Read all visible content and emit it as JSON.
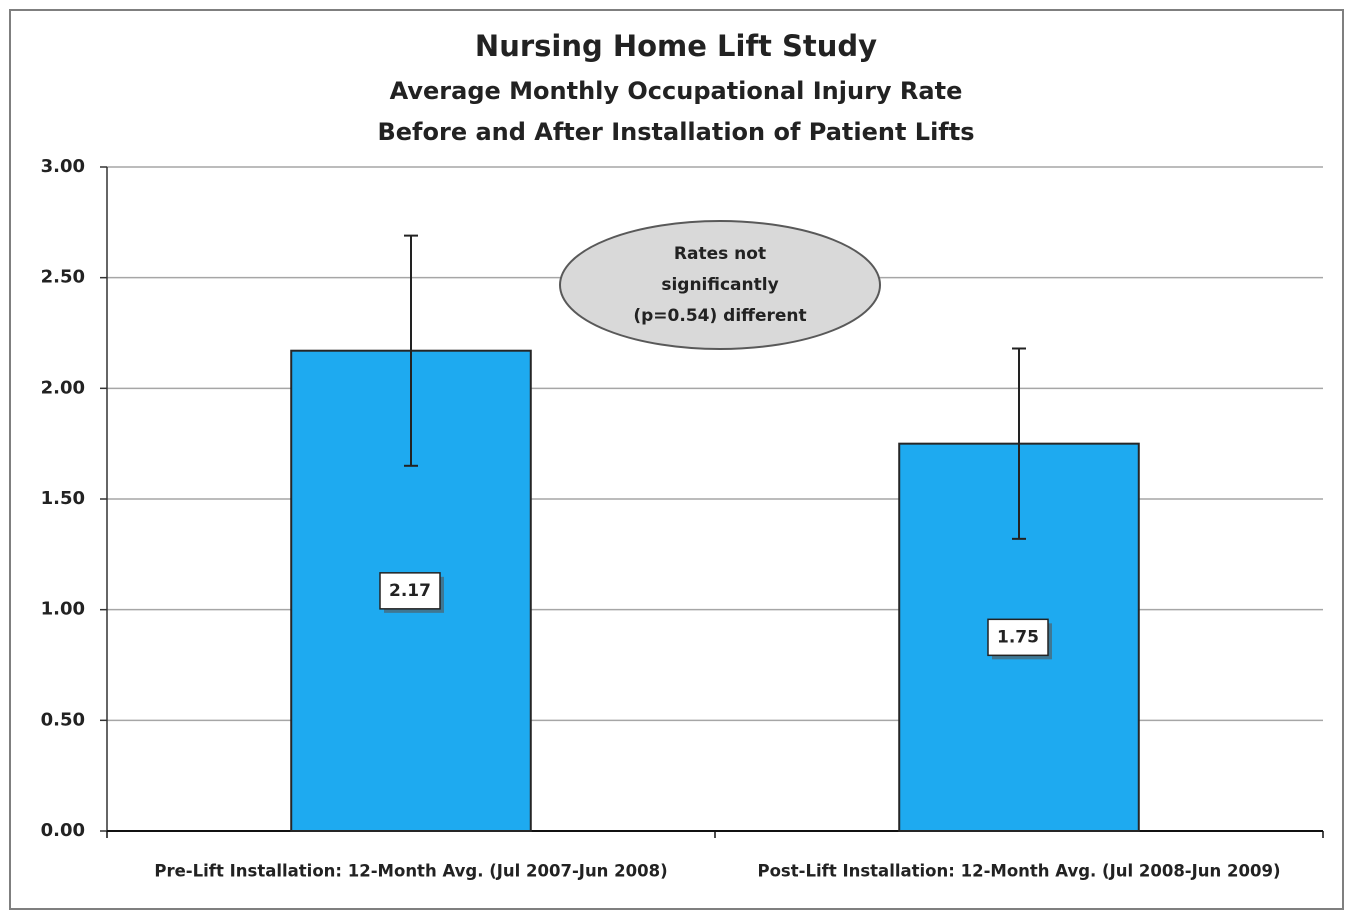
{
  "chart_data": {
    "type": "bar",
    "title": "Nursing Home Lift Study",
    "subtitle": [
      "Average Monthly Occupational Injury Rate",
      "Before and After Installation of Patient Lifts"
    ],
    "categories": [
      "Pre-Lift Installation: 12-Month Avg. (Jul 2007-Jun 2008)",
      "Post-Lift Installation: 12-Month Avg. (Jul 2008-Jun 2009)"
    ],
    "values": [
      2.17,
      1.75
    ],
    "errors": [
      0.52,
      0.43
    ],
    "color": "#1eaaf0",
    "ylim": [
      0,
      3
    ],
    "yticks": [
      {
        "value": 0,
        "label": "0.00"
      },
      {
        "value": 0.5,
        "label": "0.50"
      },
      {
        "value": 1,
        "label": "1.00"
      },
      {
        "value": 1.5,
        "label": "1.50"
      },
      {
        "value": 2,
        "label": "2.00"
      },
      {
        "value": 2.5,
        "label": "2.50"
      },
      {
        "value": 3,
        "label": "3.00"
      }
    ],
    "grid": true,
    "annotation": [
      "Rates not",
      "significantly",
      "(p=0.54) different"
    ]
  }
}
